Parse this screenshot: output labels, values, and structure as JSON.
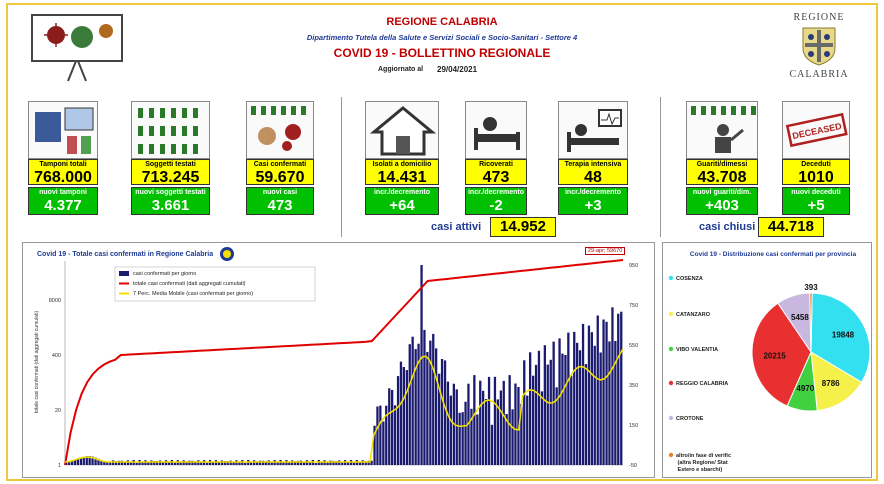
{
  "header": {
    "region": "REGIONE CALABRIA",
    "department": "Dipartimento Tutela della Salute e Servizi Sociali e Socio-Sanitari - Settore 4",
    "title": "COVID 19 - BOLLETTINO REGIONALE",
    "updated_label": "Aggiornato al",
    "updated_date": "29/04/2021",
    "logo_top": "REGIONE",
    "logo_bottom": "CALABRIA"
  },
  "stats": {
    "tamponi": {
      "label": "Tamponi totali",
      "value": "768.000",
      "sub_label": "nuovi tamponi",
      "sub_value": "4.377"
    },
    "soggetti": {
      "label": "Soggetti testati",
      "value": "713.245",
      "sub_label": "nuovi soggetti testati",
      "sub_value": "3.661"
    },
    "confermati": {
      "label": "Casi confermati",
      "value": "59.670",
      "sub_label": "nuovi casi",
      "sub_value": "473"
    },
    "isolati": {
      "label": "Isolati a domicilio",
      "value": "14.431",
      "sub_label": "incr./decremento",
      "sub_value": "+64"
    },
    "ricoverati": {
      "label": "Ricoverati",
      "value": "473",
      "sub_label": "incr./decremento",
      "sub_value": "-2"
    },
    "terapia": {
      "label": "Terapia intensiva",
      "value": "48",
      "sub_label": "incr./decremento",
      "sub_value": "+3"
    },
    "guariti": {
      "label": "Guariti/dimessi",
      "value": "43.708",
      "sub_label": "nuovi guariti/dim.",
      "sub_value": "+403"
    },
    "deceduti": {
      "label": "Deceduti",
      "value": "1010",
      "sub_label": "nuovi deceduti",
      "sub_value": "+5"
    },
    "casi_attivi_label": "casi attivi",
    "casi_attivi_value": "14.952",
    "casi_chiusi_label": "casi chiusi",
    "casi_chiusi_value": "44.718",
    "deceased_stamp": "DECEASED"
  },
  "line_chart": {
    "title": "Covid 19 - Totale casi confermati in Regione Calabria",
    "annotation": "29-apr; 59670",
    "y_left_label": "totale casi confermati (dati aggregati cumulati)",
    "y_left_ticks": [
      "8000",
      "400",
      "20",
      "1"
    ],
    "y_right_ticks": [
      "950",
      "750",
      "550",
      "350",
      "150",
      "-50"
    ],
    "legend": [
      {
        "label": "casi confermati per giorno",
        "color": "#1a1a6e"
      },
      {
        "label": "totale casi confermati (dati aggregati cumulati)",
        "color": "#e00000"
      },
      {
        "label": "7 Perc. Media Mobile (casi confermati per giorno)",
        "color": "#f5e000"
      }
    ]
  },
  "chart_data": {
    "type": "pie",
    "title": "Covid 19 - Distribuzione casi confermati per provincia",
    "categories": [
      "COSENZA",
      "CATANZARO",
      "VIBO VALENTIA",
      "REGGIO CALABRIA",
      "CROTONE",
      "altro/in fase di verifica (altra Regione/ Stato Estero e sbarchi)"
    ],
    "values": [
      19848,
      8786,
      4970,
      20215,
      5458,
      393
    ],
    "colors": [
      "#33e0f0",
      "#f5f04a",
      "#40d040",
      "#e83030",
      "#c8b8e0",
      "#e08030"
    ]
  }
}
